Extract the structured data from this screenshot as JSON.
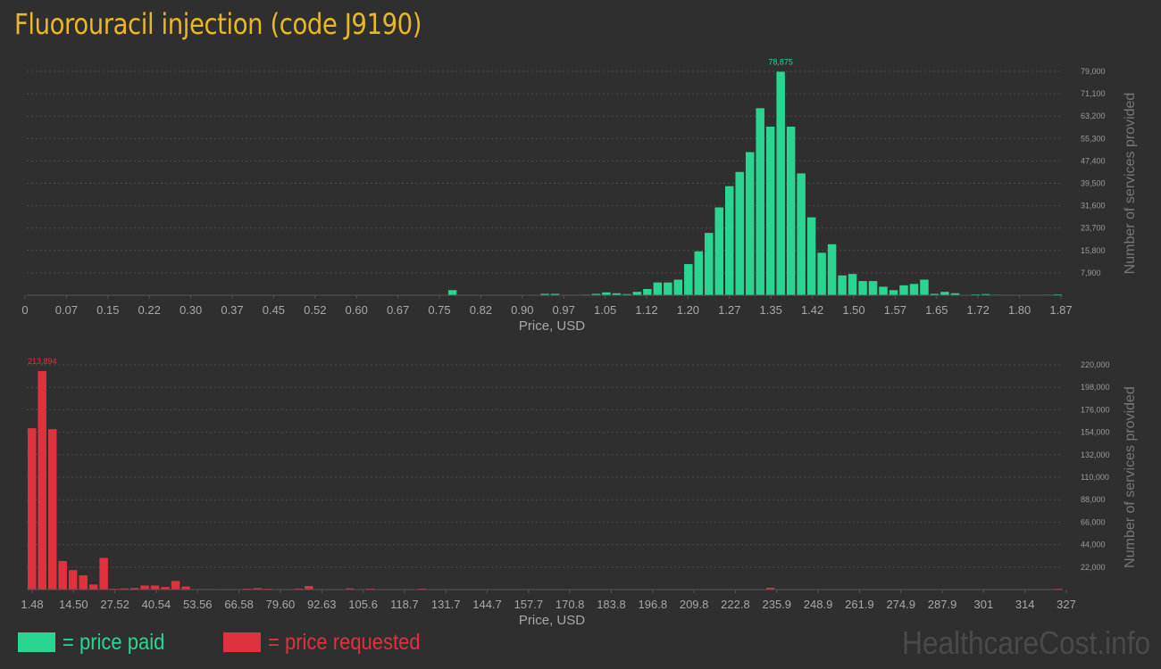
{
  "title": "Fluorouracil injection (code J9190)",
  "watermark": "HealthcareCost.info",
  "legend": {
    "paid_label": "= price paid",
    "requested_label": "= price requested",
    "paid_color": "#2ad592",
    "requested_color": "#e0313f"
  },
  "chart_data": [
    {
      "type": "bar",
      "name": "price paid",
      "color": "#2ad592",
      "xlabel": "Price, USD",
      "ylabel": "Number of services provided",
      "x_ticks": [
        "0",
        "0.07",
        "0.15",
        "0.22",
        "0.30",
        "0.37",
        "0.45",
        "0.52",
        "0.60",
        "0.67",
        "0.75",
        "0.82",
        "0.90",
        "0.97",
        "1.05",
        "1.12",
        "1.20",
        "1.27",
        "1.35",
        "1.42",
        "1.50",
        "1.57",
        "1.65",
        "1.72",
        "1.80",
        "1.87"
      ],
      "y_ticks": [
        "7,900",
        "15,800",
        "23,700",
        "31,600",
        "39,500",
        "47,400",
        "55,300",
        "63,200",
        "71,100",
        "79,000"
      ],
      "ylim": [
        0,
        79000
      ],
      "grid": true,
      "peak_label": "78,875",
      "bin_count": 101,
      "bins": [
        [
          41,
          1800
        ],
        [
          50,
          500
        ],
        [
          51,
          500
        ],
        [
          54,
          200
        ],
        [
          55,
          500
        ],
        [
          56,
          1000
        ],
        [
          57,
          700
        ],
        [
          58,
          400
        ],
        [
          59,
          1200
        ],
        [
          60,
          2200
        ],
        [
          61,
          4500
        ],
        [
          62,
          4500
        ],
        [
          63,
          5500
        ],
        [
          64,
          11000
        ],
        [
          65,
          15500
        ],
        [
          66,
          22000
        ],
        [
          67,
          31000
        ],
        [
          68,
          38500
        ],
        [
          69,
          43500
        ],
        [
          70,
          50500
        ],
        [
          71,
          66000
        ],
        [
          72,
          59500
        ],
        [
          73,
          78875
        ],
        [
          74,
          59500
        ],
        [
          75,
          43000
        ],
        [
          76,
          27500
        ],
        [
          77,
          15000
        ],
        [
          78,
          18000
        ],
        [
          79,
          7000
        ],
        [
          80,
          7500
        ],
        [
          81,
          5000
        ],
        [
          82,
          5000
        ],
        [
          83,
          3000
        ],
        [
          84,
          1800
        ],
        [
          85,
          3500
        ],
        [
          86,
          4000
        ],
        [
          87,
          5500
        ],
        [
          88,
          500
        ],
        [
          89,
          1200
        ],
        [
          90,
          700
        ],
        [
          92,
          300
        ],
        [
          93,
          400
        ],
        [
          94,
          200
        ],
        [
          99,
          200
        ],
        [
          100,
          300
        ]
      ]
    },
    {
      "type": "bar",
      "name": "price requested",
      "color": "#e0313f",
      "xlabel": "Price, USD",
      "ylabel": "Number of services provided",
      "x_ticks": [
        "1.48",
        "14.50",
        "27.52",
        "40.54",
        "53.56",
        "66.58",
        "79.60",
        "92.63",
        "105.6",
        "118.7",
        "131.7",
        "144.7",
        "157.7",
        "170.8",
        "183.8",
        "196.8",
        "209.8",
        "222.8",
        "235.9",
        "248.9",
        "261.9",
        "274.9",
        "287.9",
        "301",
        "314",
        "327"
      ],
      "y_ticks": [
        "22,000",
        "44,000",
        "66,000",
        "88,000",
        "110,000",
        "132,000",
        "154,000",
        "176,000",
        "198,000",
        "220,000"
      ],
      "ylim": [
        0,
        220000
      ],
      "grid": true,
      "peak_label": "213,894",
      "bin_count": 101,
      "bins": [
        [
          0,
          158000
        ],
        [
          1,
          213894
        ],
        [
          2,
          157000
        ],
        [
          3,
          28000
        ],
        [
          4,
          19000
        ],
        [
          5,
          14000
        ],
        [
          6,
          5000
        ],
        [
          7,
          31000
        ],
        [
          8,
          800
        ],
        [
          9,
          1200
        ],
        [
          10,
          1500
        ],
        [
          11,
          4000
        ],
        [
          12,
          4000
        ],
        [
          13,
          2500
        ],
        [
          14,
          8500
        ],
        [
          15,
          3000
        ],
        [
          16,
          500
        ],
        [
          17,
          500
        ],
        [
          18,
          500
        ],
        [
          19,
          300
        ],
        [
          21,
          900
        ],
        [
          22,
          1500
        ],
        [
          23,
          800
        ],
        [
          24,
          300
        ],
        [
          26,
          1000
        ],
        [
          27,
          3500
        ],
        [
          28,
          300
        ],
        [
          30,
          300
        ],
        [
          31,
          1200
        ],
        [
          32,
          300
        ],
        [
          33,
          900
        ],
        [
          36,
          300
        ],
        [
          38,
          900
        ],
        [
          40,
          300
        ],
        [
          44,
          300
        ],
        [
          57,
          300
        ],
        [
          72,
          1800
        ],
        [
          79,
          300
        ],
        [
          100,
          800
        ]
      ]
    }
  ]
}
